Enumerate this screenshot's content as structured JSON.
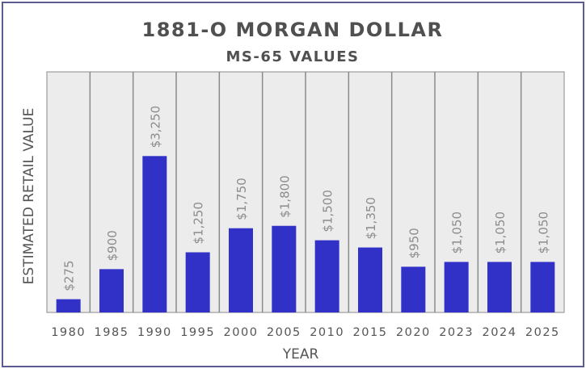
{
  "chart_data": {
    "type": "bar",
    "title": "1881-O MORGAN DOLLAR",
    "subtitle": "MS-65 VALUES",
    "xlabel": "YEAR",
    "ylabel": "ESTIMATED RETAIL VALUE",
    "categories": [
      "1980",
      "1985",
      "1990",
      "1995",
      "2000",
      "2005",
      "2010",
      "2015",
      "2020",
      "2023",
      "2024",
      "2025"
    ],
    "values": [
      275,
      900,
      3250,
      1250,
      1750,
      1800,
      1500,
      1350,
      950,
      1050,
      1050,
      1050
    ],
    "data_labels": [
      "$275",
      "$900",
      "$3,250",
      "$1,250",
      "$1,750",
      "$1,800",
      "$1,500",
      "$1,350",
      "$950",
      "$1,050",
      "$1,050",
      "$1,050"
    ],
    "ylim": [
      0,
      5000
    ],
    "grid": "vertical category separators",
    "legend": "none",
    "colors": {
      "bar": "#3131c8",
      "plot_bg": "#ececec",
      "separator": "#8a8a8a",
      "border": "#5b5b8f",
      "label": "#8c8c8c",
      "title": "#505050"
    }
  }
}
